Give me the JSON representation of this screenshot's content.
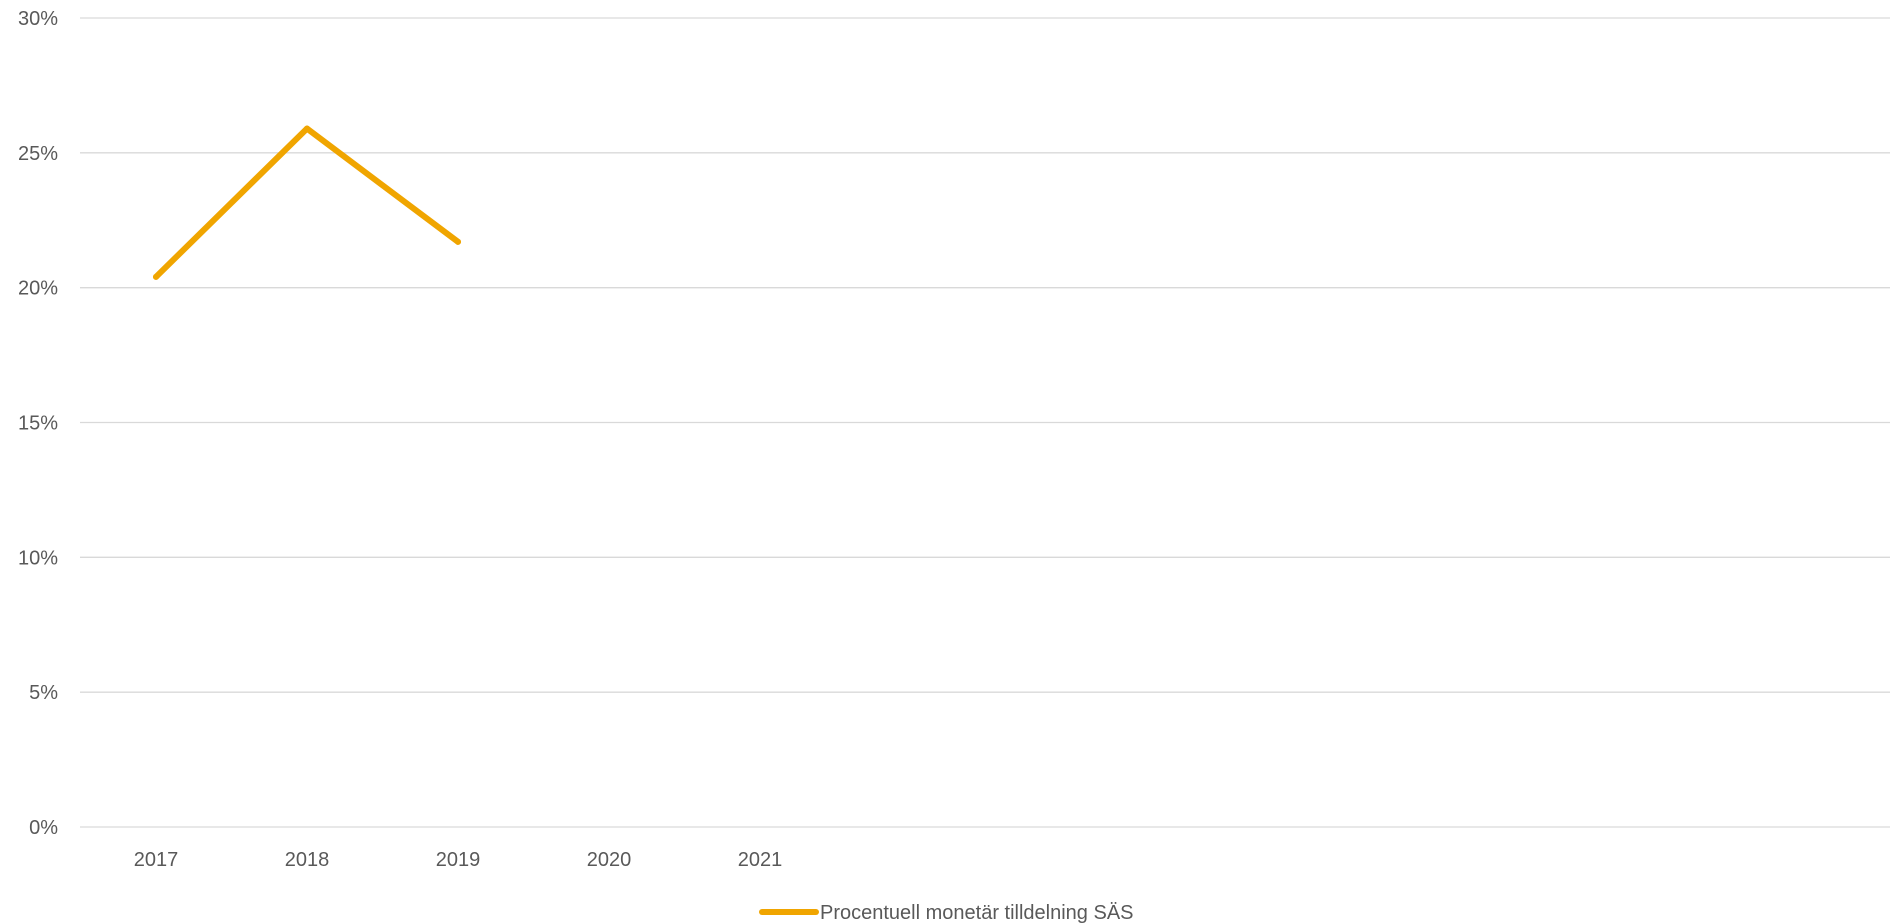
{
  "chart_data": {
    "type": "line",
    "title": "",
    "xlabel": "",
    "ylabel": "",
    "categories": [
      "2017",
      "2018",
      "2019",
      "2020",
      "2021"
    ],
    "series": [
      {
        "name": "Procentuell monetär tilldelning SÄS",
        "color": "#F0A500",
        "values": [
          0.204,
          0.259,
          0.217,
          null,
          null
        ]
      }
    ],
    "ylim": [
      0,
      0.3
    ],
    "yticks": [
      {
        "value": 0.0,
        "label": "0%"
      },
      {
        "value": 0.05,
        "label": "5%"
      },
      {
        "value": 0.1,
        "label": "10%"
      },
      {
        "value": 0.15,
        "label": "15%"
      },
      {
        "value": 0.2,
        "label": "20%"
      },
      {
        "value": 0.25,
        "label": "25%"
      },
      {
        "value": 0.3,
        "label": "30%"
      }
    ],
    "grid": true,
    "legend_position": "bottom-center"
  }
}
